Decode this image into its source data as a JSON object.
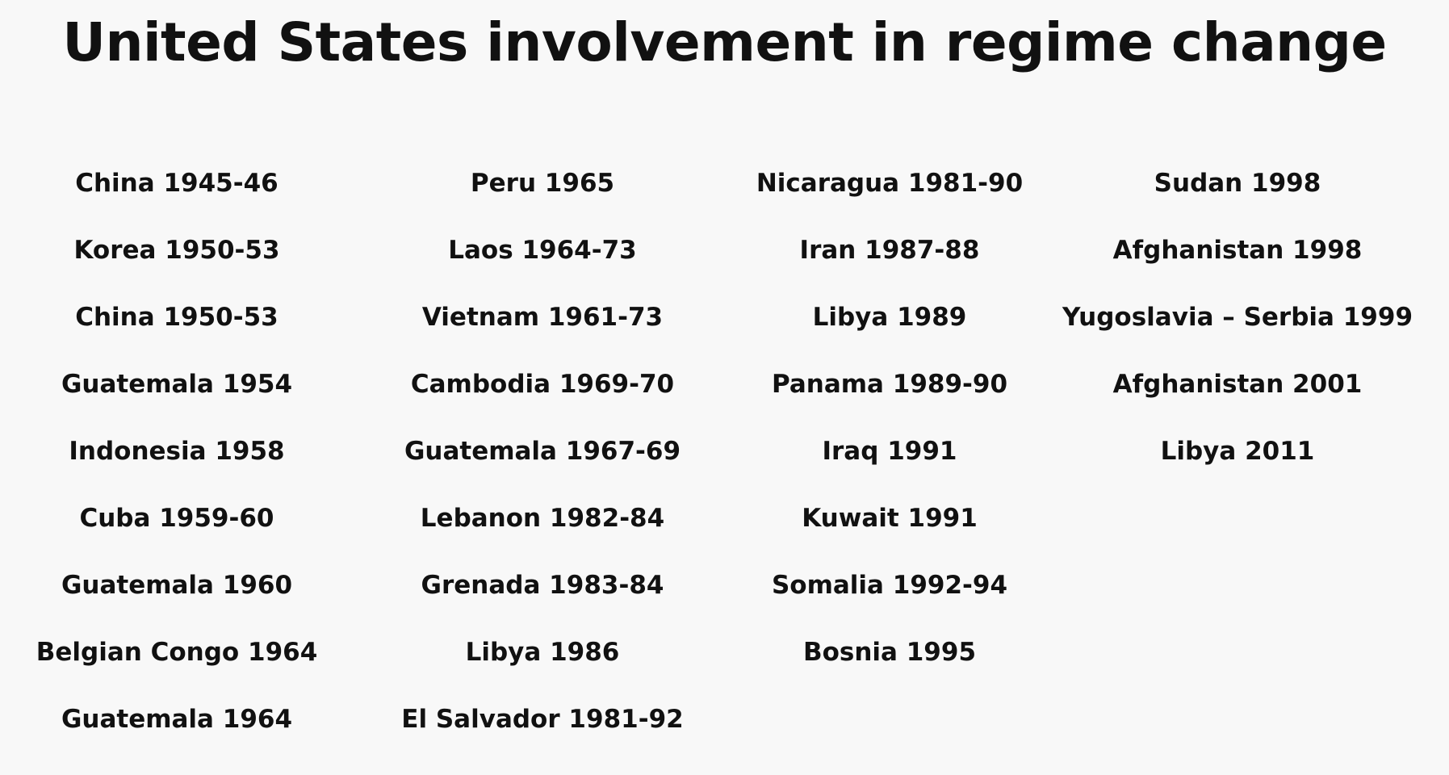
{
  "title": "United States involvement in regime change",
  "columns": [
    [
      "China 1945-46",
      "Korea 1950-53",
      "China 1950-53",
      "Guatemala 1954",
      "Indonesia 1958",
      "Cuba 1959-60",
      "Guatemala 1960",
      "Belgian Congo 1964",
      "Guatemala 1964"
    ],
    [
      "Peru 1965",
      "Laos 1964-73",
      "Vietnam 1961-73",
      "Cambodia 1969-70",
      "Guatemala 1967-69",
      "Lebanon 1982-84",
      "Grenada 1983-84",
      "Libya 1986",
      "El Salvador 1981-92"
    ],
    [
      "Nicaragua 1981-90",
      "Iran 1987-88",
      "Libya 1989",
      "Panama 1989-90",
      "Iraq 1991",
      "Kuwait 1991",
      "Somalia 1992-94",
      "Bosnia 1995"
    ],
    [
      "Sudan 1998",
      "Afghanistan 1998",
      "Yugoslavia – Serbia 1999",
      "Afghanistan 2001",
      "Libya 2011"
    ]
  ]
}
